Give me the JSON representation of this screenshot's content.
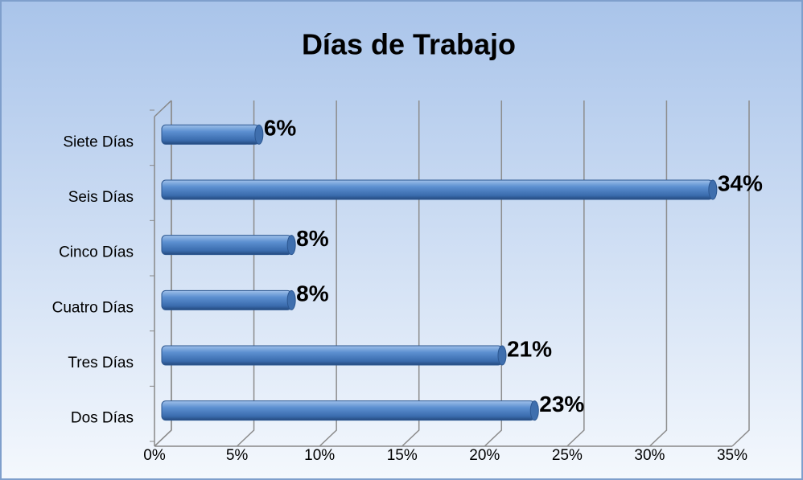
{
  "chart_data": {
    "type": "bar",
    "orientation": "horizontal",
    "title": "Días de Trabajo",
    "categories": [
      "Dos Días",
      "Tres Días",
      "Cuatro Días",
      "Cinco Días",
      "Seis Días",
      "Siete Días"
    ],
    "values": [
      23,
      21,
      8,
      8,
      34,
      6
    ],
    "value_labels": [
      "23%",
      "21%",
      "8%",
      "8%",
      "34%",
      "6%"
    ],
    "color": "#4a7ebb",
    "xlim": [
      0,
      35
    ],
    "xticks": [
      {
        "value": 0,
        "label": "0%"
      },
      {
        "value": 5,
        "label": "5%"
      },
      {
        "value": 10,
        "label": "10%"
      },
      {
        "value": 15,
        "label": "15%"
      },
      {
        "value": 20,
        "label": "20%"
      },
      {
        "value": 25,
        "label": "25%"
      },
      {
        "value": 30,
        "label": "30%"
      },
      {
        "value": 35,
        "label": "35%"
      }
    ],
    "grid": true
  }
}
